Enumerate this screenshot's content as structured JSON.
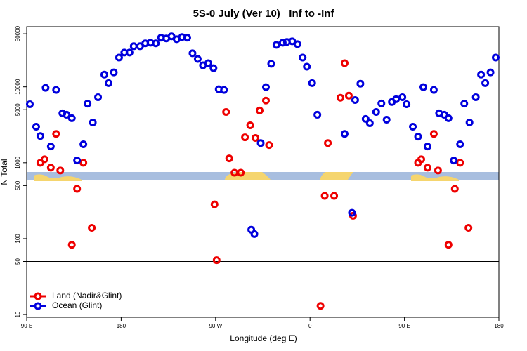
{
  "chart_data": {
    "type": "scatter",
    "title": "5S-0 July (Ver 10)   Inf to -Inf",
    "x_label": "Longitude (deg E)",
    "y_label": "N Total",
    "xlim": [
      90,
      540
    ],
    "xticks": [
      {
        "value": 90,
        "label": "90 E"
      },
      180,
      {
        "value": 270,
        "label": "90 W"
      },
      {
        "value": 360,
        "label": "0"
      },
      {
        "value": 450,
        "label": "90 E"
      },
      {
        "value": 540,
        "label": "180"
      }
    ],
    "ylim": [
      9.2,
      62000
    ],
    "yticks": [
      10,
      50,
      100,
      500,
      1000,
      5000,
      10000,
      50000
    ],
    "log_y": true,
    "reference_line": 50,
    "legend": "bottom-left",
    "series": [
      {
        "name": "Land (Nadir&Glint)",
        "color": "#ee0000",
        "x": [
          103,
          107,
          113,
          118,
          122,
          133,
          138,
          144,
          152,
          269,
          271,
          280,
          283,
          288,
          294,
          298,
          303,
          308,
          312,
          318,
          321,
          370,
          374,
          377,
          383,
          389,
          393,
          397,
          401,
          463,
          466,
          472,
          478,
          482,
          492,
          498,
          503,
          511
        ],
        "values": [
          1000,
          1110,
          860,
          2400,
          790,
          83,
          453,
          1000,
          139,
          283,
          52,
          4670,
          1140,
          740,
          740,
          2160,
          3110,
          2120,
          4880,
          6600,
          1710,
          13,
          366,
          1820,
          366,
          7180,
          20500,
          7650,
          200,
          1000,
          1110,
          860,
          2400,
          790,
          83,
          453,
          1000,
          139
        ]
      },
      {
        "name": "Ocean (Glint)",
        "color": "#0000dd",
        "x": [
          93,
          99,
          103,
          108,
          113,
          118,
          124,
          128,
          133,
          138,
          144,
          148,
          153,
          158,
          164,
          168,
          173,
          178,
          183,
          188,
          192,
          198,
          203,
          208,
          213,
          218,
          223,
          228,
          233,
          238,
          243,
          248,
          253,
          258,
          263,
          268,
          273,
          278,
          304,
          307,
          313,
          318,
          323,
          328,
          334,
          338,
          343,
          348,
          353,
          357,
          362,
          367,
          393,
          400,
          403,
          408,
          413,
          417,
          423,
          428,
          433,
          438,
          442,
          448,
          452,
          458,
          463,
          468,
          472,
          478,
          483,
          488,
          492,
          497,
          503,
          507,
          512,
          518,
          523,
          527,
          532,
          537
        ],
        "values": [
          5900,
          2980,
          2250,
          9700,
          1640,
          9100,
          4480,
          4290,
          3860,
          1070,
          1750,
          6000,
          3390,
          7300,
          14500,
          11200,
          15500,
          24300,
          28300,
          28300,
          34300,
          34300,
          37400,
          38100,
          37400,
          44400,
          43400,
          46300,
          42400,
          45300,
          44400,
          27700,
          23300,
          19200,
          20500,
          17600,
          9300,
          9100,
          131,
          115,
          1820,
          9900,
          20100,
          35700,
          38100,
          39000,
          39800,
          36500,
          24300,
          18400,
          11200,
          4290,
          2400,
          219,
          6700,
          11000,
          3780,
          3320,
          4670,
          6040,
          3690,
          6310,
          6870,
          7300,
          5900,
          2980,
          2210,
          9900,
          1640,
          9100,
          4480,
          4290,
          3860,
          1070,
          1750,
          6000,
          3390,
          7300,
          14500,
          11200,
          15500,
          24300
        ]
      }
    ]
  }
}
